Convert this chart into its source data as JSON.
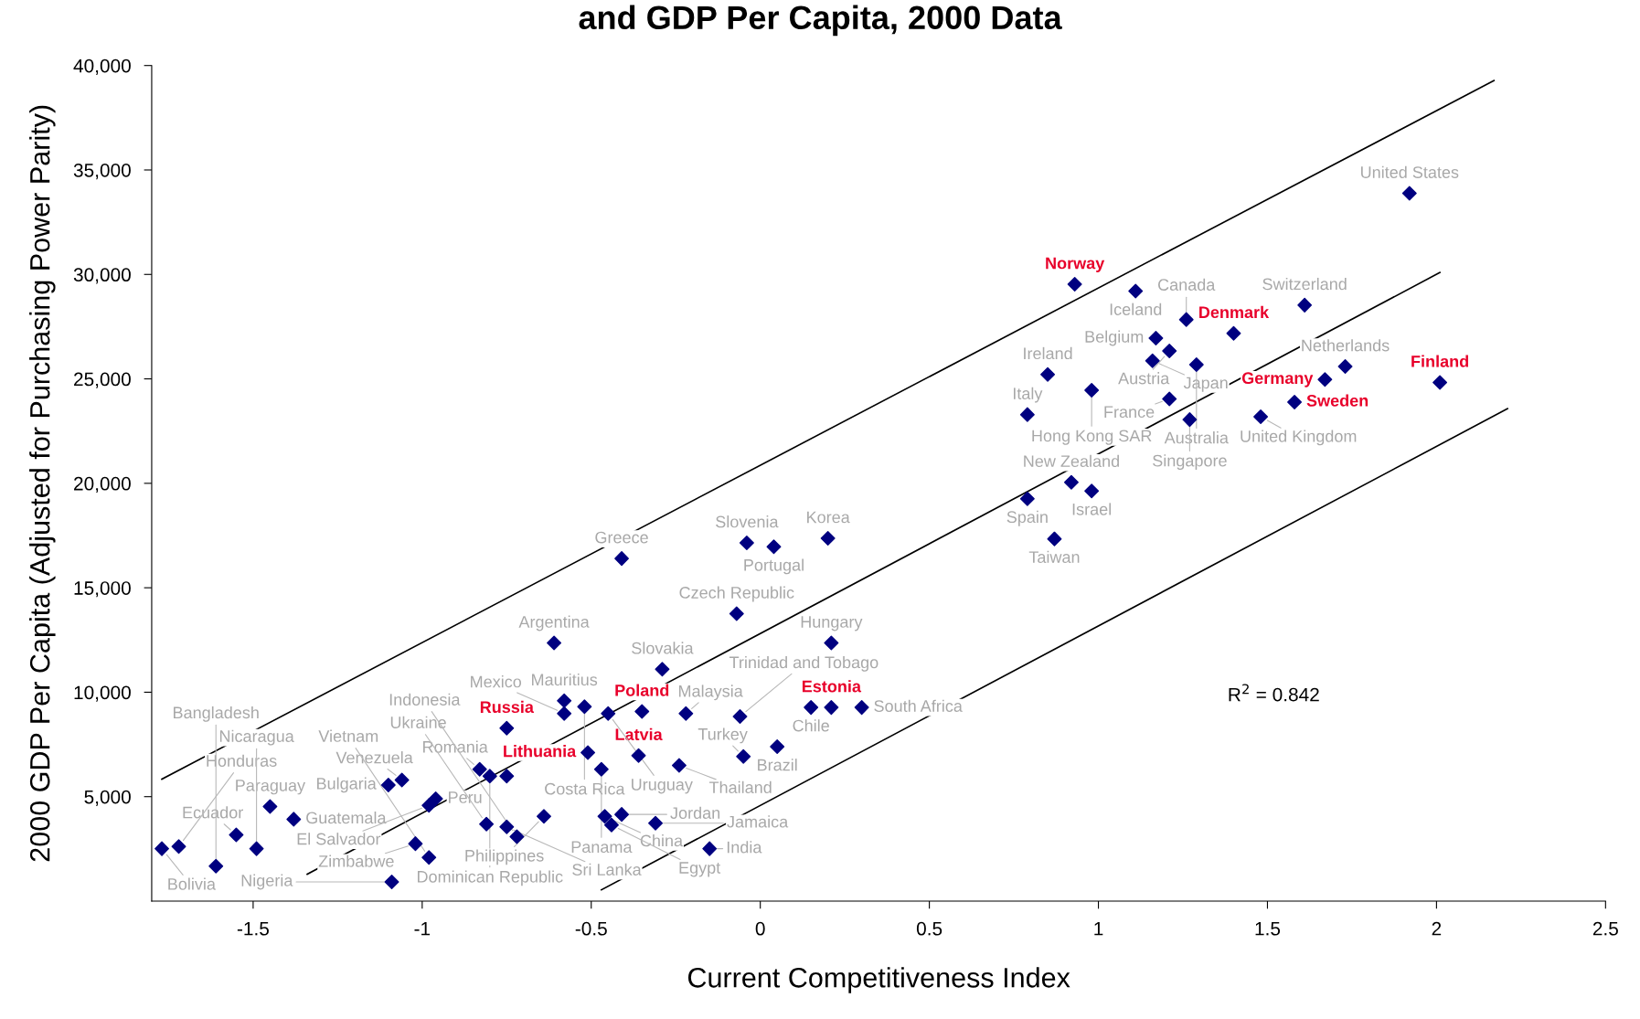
{
  "chart_data": {
    "type": "scatter",
    "title": "and GDP Per Capita, 2000 Data",
    "xlabel": "Current Competitiveness Index",
    "ylabel": "2000 GDP Per Capita (Adjusted for Purchasing Power Parity)",
    "xlim": [
      -1.8,
      2.5
    ],
    "ylim": [
      0,
      40000
    ],
    "xticks": [
      -1.5,
      -1,
      -0.5,
      0,
      0.5,
      1,
      1.5,
      2,
      2.5
    ],
    "yticks": [
      {
        "value": 5000,
        "label": "5,000"
      },
      {
        "value": 10000,
        "label": "10,000"
      },
      {
        "value": 15000,
        "label": "15,000"
      },
      {
        "value": 20000,
        "label": "20,000"
      },
      {
        "value": 25000,
        "label": "25,000"
      },
      {
        "value": 30000,
        "label": "30,000"
      },
      {
        "value": 35000,
        "label": "35,000"
      },
      {
        "value": 40000,
        "label": "40,000"
      }
    ],
    "grid": false,
    "legend": false,
    "marker": "diamond",
    "series": [
      {
        "color": "#000080",
        "x": [
          -1.77,
          -1.72,
          -1.61,
          -1.55,
          -1.49,
          -1.45,
          -1.38,
          -1.1,
          -1.06,
          -0.98,
          -0.96,
          -1.02,
          -0.98,
          -1.09,
          -0.83,
          -0.8,
          -0.75,
          -0.81,
          -0.75,
          -0.72,
          -0.64,
          -0.61,
          -0.58,
          -0.58,
          -0.52,
          -0.47,
          -0.45,
          -0.46,
          -0.44,
          -0.41,
          -0.41,
          -0.31,
          -0.29,
          -0.24,
          -0.22,
          -0.15,
          -0.07,
          -0.06,
          -0.05,
          -0.04,
          0.04,
          0.05,
          0.15,
          0.2,
          0.21,
          0.3,
          0.79,
          0.79,
          0.85,
          0.87,
          0.92,
          0.98,
          0.98,
          1.11,
          1.17,
          1.16,
          1.21,
          1.21,
          1.26,
          1.27,
          1.29,
          1.48,
          1.61,
          1.73,
          1.92
        ],
        "values": [
          2510,
          2610,
          1670,
          3170,
          2510,
          4530,
          3920,
          5560,
          5800,
          4580,
          4900,
          2750,
          2090,
          920,
          6310,
          5980,
          5980,
          3690,
          3550,
          3080,
          4060,
          12360,
          9590,
          8980,
          9310,
          6310,
          8980,
          4060,
          3640,
          4150,
          16400,
          3730,
          11100,
          6500,
          8980,
          2510,
          13760,
          8840,
          6920,
          17150,
          16960,
          7390,
          9270,
          17370,
          12360,
          9270,
          23290,
          19260,
          25210,
          17340,
          20050,
          24460,
          19630,
          29200,
          26950,
          25870,
          26340,
          24040,
          27840,
          23050,
          25680,
          23190,
          28530,
          25590,
          33880
        ]
      },
      {
        "color": "#000080",
        "x": [
          0.93,
          1.4,
          1.67,
          2.01,
          1.58,
          -0.35,
          -0.75,
          -0.36,
          0.21,
          -0.51
        ],
        "values": [
          29530,
          27180,
          24970,
          24830,
          23890,
          9080,
          8280,
          6970,
          9270,
          7110
        ]
      },
      {
        "type": "line",
        "color": "#000000",
        "marker": "none",
        "line_style": "solid",
        "x": [
          -1.77,
          2.17
        ],
        "values": [
          5840,
          39280
        ]
      },
      {
        "type": "line",
        "color": "#000000",
        "marker": "none",
        "line_style": "solid",
        "x": [
          -1.34,
          2.01
        ],
        "values": [
          1290,
          30090
        ]
      },
      {
        "type": "line",
        "color": "#000000",
        "marker": "none",
        "line_style": "solid",
        "x": [
          -0.47,
          2.21
        ],
        "values": [
          540,
          23570
        ]
      }
    ],
    "annotations": [
      "R$^{2}$ = 0.842",
      {
        "text": "Norway",
        "x": 0.93,
        "y": 29530
      },
      {
        "text": "Denmark",
        "x": 1.4,
        "y": 27180
      },
      {
        "text": "Germany",
        "x": 1.67,
        "y": 24970
      },
      {
        "text": "Finland",
        "x": 2.01,
        "y": 24830
      },
      {
        "text": "Sweden",
        "x": 1.58,
        "y": 23890
      },
      {
        "text": "Poland",
        "x": -0.35,
        "y": 9080
      },
      {
        "text": "Russia",
        "x": -0.75,
        "y": 8280
      },
      {
        "text": "Latvia",
        "x": -0.36,
        "y": 6970
      },
      {
        "text": "Estonia",
        "x": 0.21,
        "y": 9270
      },
      {
        "text": "Lithuania",
        "x": -0.51,
        "y": 7110
      },
      {
        "text": "United States",
        "x": 1.92,
        "y": 33880
      },
      {
        "text": "Iceland",
        "x": 1.11,
        "y": 29200
      },
      {
        "text": "Switzerland",
        "x": 1.61,
        "y": 28530
      },
      {
        "text": "Canada",
        "x": 1.26,
        "y": 27840
      },
      {
        "text": "Belgium",
        "x": 1.17,
        "y": 26950
      },
      {
        "text": "Austria",
        "x": 1.21,
        "y": 26340
      },
      {
        "text": "Japan",
        "x": 1.16,
        "y": 25870
      },
      {
        "text": "Australia",
        "x": 1.29,
        "y": 25680
      },
      {
        "text": "Netherlands",
        "x": 1.73,
        "y": 25590
      },
      {
        "text": "Ireland",
        "x": 0.85,
        "y": 25210
      },
      {
        "text": "Hong Kong SAR",
        "x": 0.98,
        "y": 24460
      },
      {
        "text": "France",
        "x": 1.21,
        "y": 24040
      },
      {
        "text": "Italy",
        "x": 0.79,
        "y": 23290
      },
      {
        "text": "Singapore",
        "x": 1.27,
        "y": 23050
      },
      {
        "text": "United Kingdom",
        "x": 1.48,
        "y": 23190
      },
      {
        "text": "New Zealand",
        "x": 0.92,
        "y": 20050
      },
      {
        "text": "Spain",
        "x": 0.79,
        "y": 19260
      },
      {
        "text": "Israel",
        "x": 0.98,
        "y": 19630
      },
      {
        "text": "Taiwan",
        "x": 0.87,
        "y": 17340
      },
      {
        "text": "Greece",
        "x": -0.41,
        "y": 16400
      },
      {
        "text": "Slovenia",
        "x": -0.04,
        "y": 17150
      },
      {
        "text": "Portugal",
        "x": 0.04,
        "y": 16960
      },
      {
        "text": "Korea",
        "x": 0.2,
        "y": 17370
      },
      {
        "text": "Czech Republic",
        "x": -0.07,
        "y": 13760
      },
      {
        "text": "Argentina",
        "x": -0.61,
        "y": 12360
      },
      {
        "text": "Hungary",
        "x": 0.21,
        "y": 12360
      },
      {
        "text": "Slovakia",
        "x": -0.29,
        "y": 11100
      },
      {
        "text": "Mauritius",
        "x": -0.58,
        "y": 9590
      },
      {
        "text": "Costa Rica",
        "x": -0.52,
        "y": 9310
      },
      {
        "text": "Mexico",
        "x": -0.58,
        "y": 8980
      },
      {
        "text": "Uruguay",
        "x": -0.45,
        "y": 8980
      },
      {
        "text": "Malaysia",
        "x": -0.22,
        "y": 8980
      },
      {
        "text": "Trinidad and Tobago",
        "x": -0.06,
        "y": 8840
      },
      {
        "text": "Chile",
        "x": 0.15,
        "y": 9270
      },
      {
        "text": "South Africa",
        "x": 0.3,
        "y": 9270
      },
      {
        "text": "Brazil",
        "x": 0.05,
        "y": 7390
      },
      {
        "text": "Turkey",
        "x": -0.05,
        "y": 6920
      },
      {
        "text": "Thailand",
        "x": -0.24,
        "y": 6500
      },
      {
        "text": "Panama",
        "x": -0.47,
        "y": 6310
      },
      {
        "text": "Romania",
        "x": -0.83,
        "y": 6310
      },
      {
        "text": "Dominican Republic",
        "x": -0.8,
        "y": 5980
      },
      {
        "text": "Venezuela",
        "x": -1.06,
        "y": 5800
      },
      {
        "text": "Bulgaria",
        "x": -1.1,
        "y": 5560
      },
      {
        "text": "Paraguay",
        "x": -1.45,
        "y": 4530
      },
      {
        "text": "Guatemala",
        "x": -1.38,
        "y": 3920
      },
      {
        "text": "El Salvador",
        "x": -0.98,
        "y": 4580
      },
      {
        "text": "Peru",
        "x": -0.96,
        "y": 4900
      },
      {
        "text": "Philippines",
        "x": -0.64,
        "y": 4060
      },
      {
        "text": "Ukraine",
        "x": -0.81,
        "y": 3690
      },
      {
        "text": "Sri Lanka",
        "x": -0.75,
        "y": 3550
      },
      {
        "text": "China",
        "x": -0.46,
        "y": 4060
      },
      {
        "text": "Jordan",
        "x": -0.41,
        "y": 4150
      },
      {
        "text": "Egypt",
        "x": -0.44,
        "y": 3640
      },
      {
        "text": "Jamaica",
        "x": -0.31,
        "y": 3730
      },
      {
        "text": "Indonesia",
        "x": -0.72,
        "y": 3080
      },
      {
        "text": "Ecuador",
        "x": -1.55,
        "y": 3170
      },
      {
        "text": "Bolivia",
        "x": -1.77,
        "y": 2510
      },
      {
        "text": "Honduras",
        "x": -1.72,
        "y": 2610
      },
      {
        "text": "Nicaragua",
        "x": -1.49,
        "y": 2510
      },
      {
        "text": "Zimbabwe",
        "x": -1.02,
        "y": 2750
      },
      {
        "text": "Vietnam",
        "x": -0.98,
        "y": 2090
      },
      {
        "text": "Bangladesh",
        "x": -1.61,
        "y": 1670
      },
      {
        "text": "Nigeria",
        "x": -1.09,
        "y": 920
      },
      {
        "text": "India",
        "x": -0.15,
        "y": 2510
      }
    ]
  }
}
